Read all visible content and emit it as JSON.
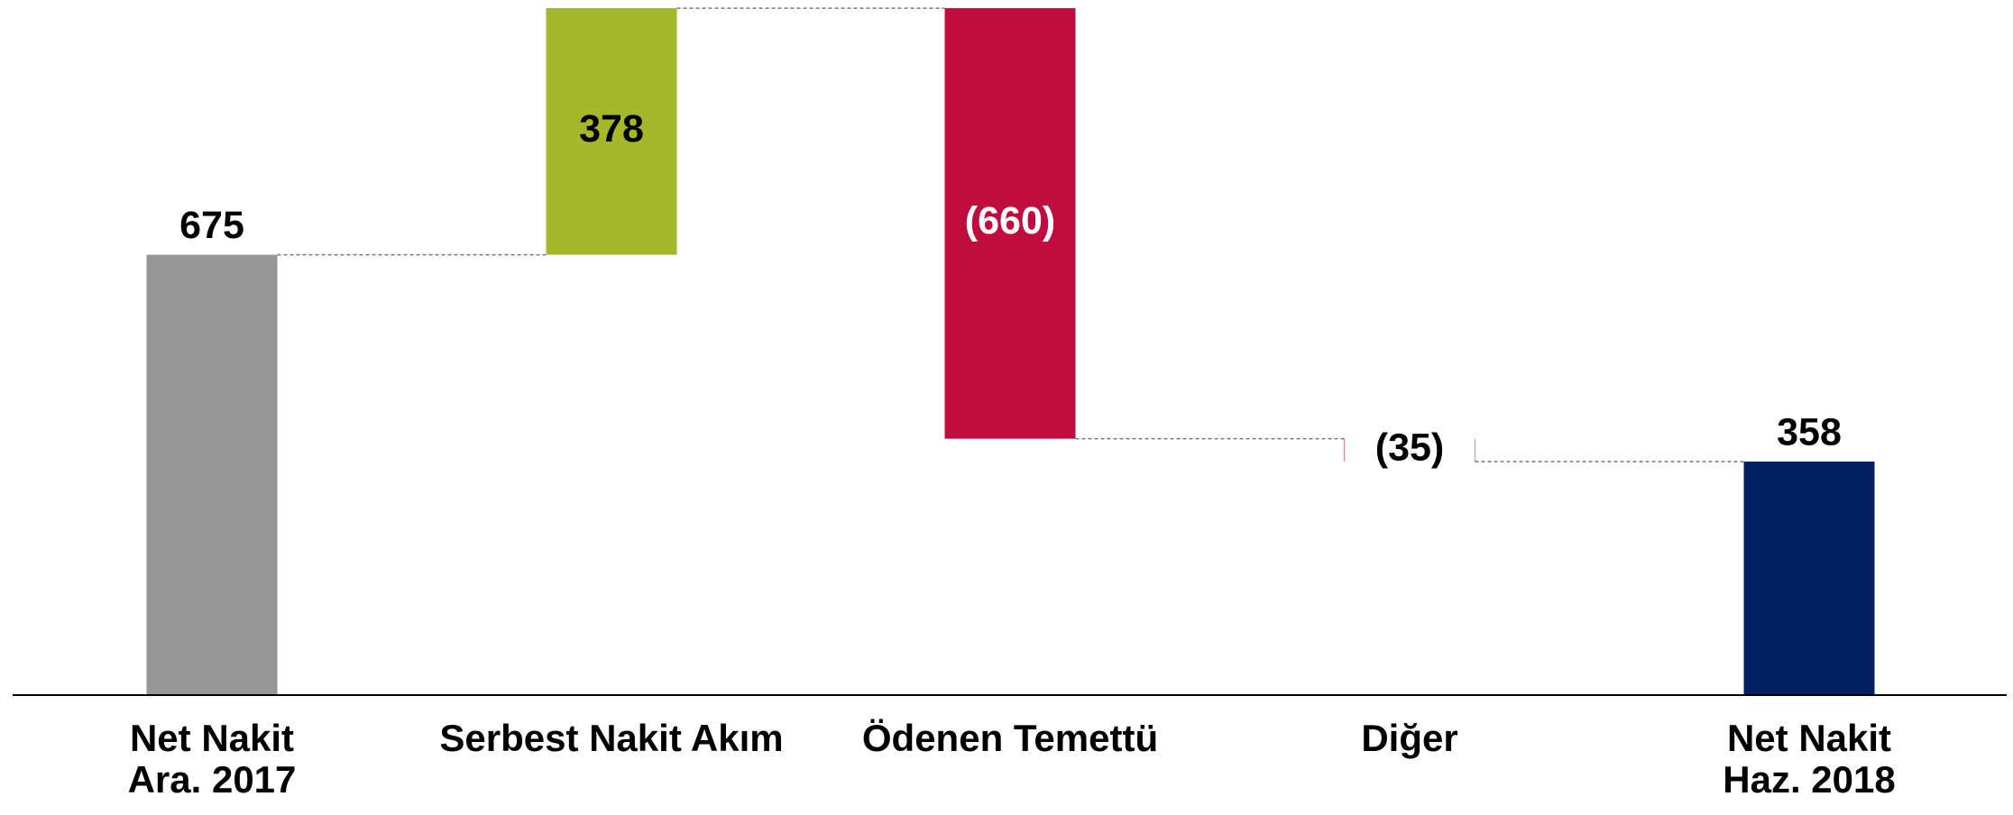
{
  "chart_data": {
    "type": "waterfall",
    "categories": [
      "Net Nakit\nAra. 2017",
      "Serbest Nakit Akım",
      "Ödenen Temettü",
      "Diğer",
      "Net Nakit\nHaz. 2018"
    ],
    "values": [
      675,
      378,
      -660,
      -35,
      358
    ],
    "value_labels": [
      "675",
      "378",
      "(660)",
      "(35)",
      "358"
    ],
    "kinds": [
      "total",
      "delta",
      "delta",
      "delta",
      "total"
    ],
    "colors": [
      "#969696",
      "#a5b82a",
      "#c00c3f",
      "#c00c3f",
      "#002060"
    ],
    "ylim": [
      0,
      1060
    ]
  }
}
